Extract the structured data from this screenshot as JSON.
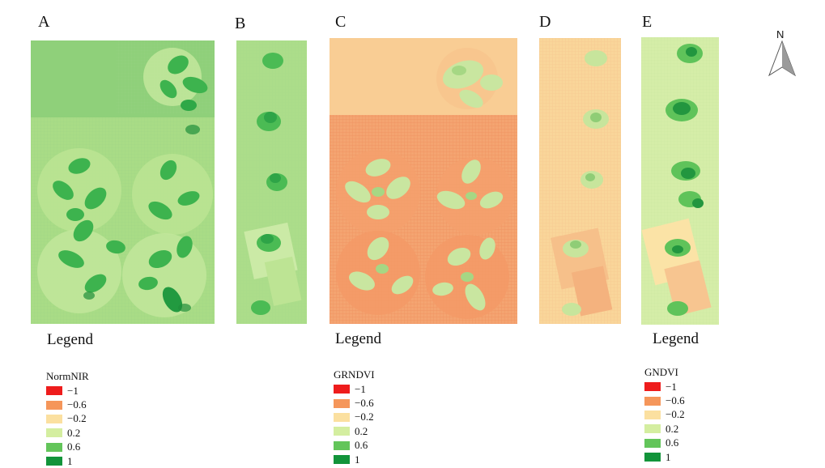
{
  "panels": {
    "a": {
      "letter": "A"
    },
    "b": {
      "letter": "B"
    },
    "c": {
      "letter": "C"
    },
    "d": {
      "letter": "D"
    },
    "e": {
      "letter": "E"
    }
  },
  "legends": {
    "normnir": {
      "heading": "Legend",
      "variable": "NormNIR",
      "labels": [
        "−1",
        "−0.6",
        "−0.2",
        "0.2",
        "0.6",
        "1"
      ]
    },
    "grndvi": {
      "heading": "Legend",
      "variable": "GRNDVI",
      "labels": [
        "−1",
        "−0.6",
        "−0.2",
        "0.2",
        "0.6",
        "1"
      ]
    },
    "gndvi": {
      "heading": "Legend",
      "variable": "GNDVI",
      "labels": [
        "−1",
        "−0.6",
        "−0.2",
        "0.2",
        "0.6",
        "1"
      ]
    }
  },
  "legend_colors": [
    "#ee1c1c",
    "#f5965a",
    "#fbe0a0",
    "#d4eea0",
    "#63c55a",
    "#12943a"
  ],
  "north_arrow": {
    "label": "N",
    "icon": "north-arrow-icon"
  }
}
